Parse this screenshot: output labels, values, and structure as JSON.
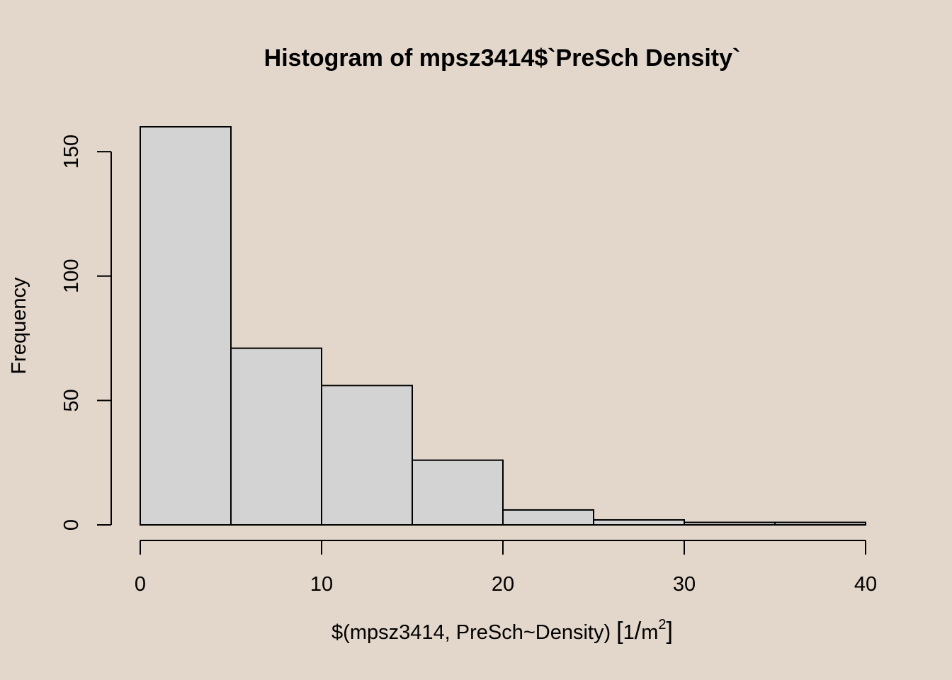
{
  "chart_data": {
    "type": "histogram",
    "title": "Histogram of mpsz3414$`PreSch Density`",
    "xlabel": {
      "prefix": "$(mpsz3414, PreSch~Density)",
      "unit_open": "[",
      "unit_numer": "1",
      "unit_slash": "/",
      "unit_denom": "m",
      "unit_exp": "2",
      "unit_close": "]"
    },
    "ylabel": "Frequency",
    "bins": [
      {
        "from": 0,
        "to": 5,
        "count": 160
      },
      {
        "from": 5,
        "to": 10,
        "count": 71
      },
      {
        "from": 10,
        "to": 15,
        "count": 56
      },
      {
        "from": 15,
        "to": 20,
        "count": 26
      },
      {
        "from": 20,
        "to": 25,
        "count": 6
      },
      {
        "from": 25,
        "to": 30,
        "count": 2
      },
      {
        "from": 30,
        "to": 35,
        "count": 1
      },
      {
        "from": 35,
        "to": 40,
        "count": 1
      }
    ],
    "xlim": [
      0,
      40
    ],
    "ylim": [
      0,
      160
    ],
    "x_ticks": [
      0,
      10,
      20,
      30,
      40
    ],
    "y_ticks": [
      0,
      50,
      100,
      150
    ],
    "colors": {
      "bar_fill": "#d3d3d3",
      "bar_stroke": "#000000",
      "background": "#e3d6ca"
    }
  }
}
